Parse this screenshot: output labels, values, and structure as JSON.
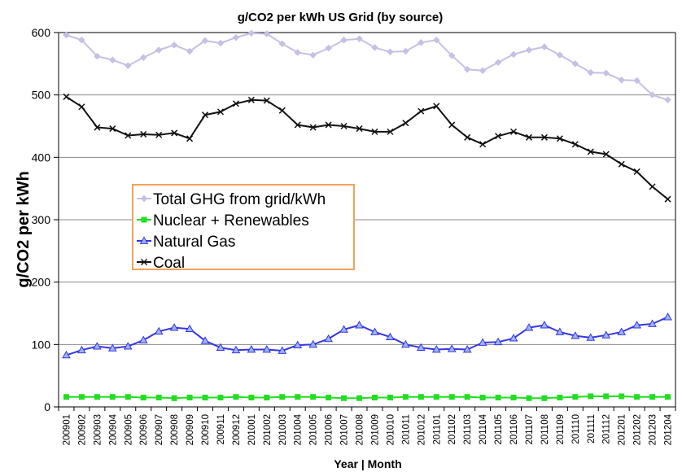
{
  "chart_data": {
    "type": "line",
    "title": "g/CO2 per kWh US Grid (by source)",
    "xlabel": "Year | Month",
    "ylabel": "g/CO2 per kWh",
    "ylim": [
      0,
      600
    ],
    "yticks": [
      0,
      100,
      200,
      300,
      400,
      500,
      600
    ],
    "grid": true,
    "legend_position": "center-left",
    "categories": [
      "200901",
      "200902",
      "200903",
      "200904",
      "200905",
      "200906",
      "200907",
      "200908",
      "200909",
      "200910",
      "200911",
      "200912",
      "201001",
      "201002",
      "201003",
      "201004",
      "201005",
      "201006",
      "201007",
      "201008",
      "201009",
      "201010",
      "201011",
      "201012",
      "201101",
      "201102",
      "201103",
      "201104",
      "201105",
      "201106",
      "201107",
      "201108",
      "201109",
      "201110",
      "201111",
      "201112",
      "201201",
      "201202",
      "201203",
      "201204"
    ],
    "series": [
      {
        "name": "Total GHG from grid/kWh",
        "color": "#c8bfe3",
        "marker": "diamond",
        "values": [
          596,
          588,
          562,
          556,
          547,
          560,
          572,
          580,
          570,
          587,
          583,
          592,
          599,
          598,
          582,
          568,
          564,
          575,
          588,
          590,
          576,
          569,
          570,
          584,
          588,
          563,
          541,
          539,
          552,
          565,
          572,
          577,
          564,
          550,
          536,
          535,
          524,
          523,
          500,
          492
        ]
      },
      {
        "name": "Nuclear + Renewables",
        "color": "#22dd22",
        "marker": "square",
        "values": [
          16,
          16,
          16,
          16,
          16,
          15,
          15,
          14,
          15,
          15,
          15,
          16,
          15,
          15,
          16,
          16,
          16,
          15,
          14,
          14,
          15,
          15,
          16,
          16,
          16,
          16,
          16,
          15,
          15,
          15,
          14,
          14,
          15,
          16,
          17,
          17,
          17,
          16,
          16,
          16
        ]
      },
      {
        "name": "Natural Gas",
        "color": "#3636e0",
        "marker": "triangle",
        "values": [
          83,
          91,
          97,
          94,
          97,
          107,
          121,
          127,
          125,
          106,
          95,
          91,
          92,
          92,
          90,
          99,
          100,
          109,
          124,
          131,
          120,
          112,
          100,
          95,
          92,
          93,
          92,
          103,
          104,
          110,
          127,
          131,
          120,
          114,
          111,
          115,
          120,
          131,
          133,
          144
        ]
      },
      {
        "name": "Coal",
        "color": "#111111",
        "marker": "x",
        "values": [
          497,
          481,
          448,
          446,
          435,
          437,
          436,
          439,
          430,
          468,
          473,
          486,
          492,
          491,
          475,
          452,
          448,
          452,
          450,
          446,
          441,
          441,
          455,
          474,
          482,
          452,
          432,
          421,
          434,
          441,
          432,
          432,
          430,
          421,
          409,
          405,
          389,
          377,
          353,
          333
        ]
      }
    ]
  }
}
